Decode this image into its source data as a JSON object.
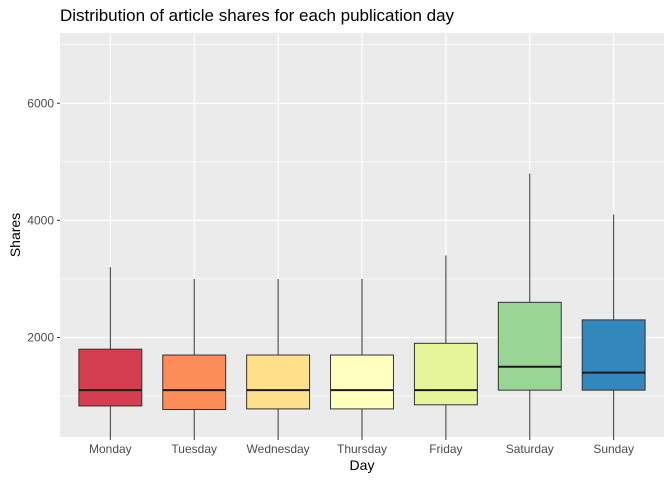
{
  "chart_data": {
    "type": "box",
    "title": "Distribution of article shares for each publication day",
    "xlabel": "Day",
    "ylabel": "Shares",
    "ylim": [
      300,
      7200
    ],
    "yticks": [
      2000,
      4000,
      6000
    ],
    "yticks_minor": [
      1000,
      3000,
      5000,
      7000
    ],
    "grid": true,
    "legend": "none",
    "categories": [
      "Monday",
      "Tuesday",
      "Wednesday",
      "Thursday",
      "Friday",
      "Saturday",
      "Sunday"
    ],
    "boxes": [
      {
        "category": "Monday",
        "lower_whisker": 300,
        "q1": 830,
        "median": 1100,
        "q3": 1800,
        "upper_whisker": 3200,
        "color": "#d53e4f"
      },
      {
        "category": "Tuesday",
        "lower_whisker": 300,
        "q1": 770,
        "median": 1100,
        "q3": 1700,
        "upper_whisker": 3000,
        "color": "#fc8d59"
      },
      {
        "category": "Wednesday",
        "lower_whisker": 300,
        "q1": 780,
        "median": 1100,
        "q3": 1700,
        "upper_whisker": 3000,
        "color": "#fee08b"
      },
      {
        "category": "Thursday",
        "lower_whisker": 300,
        "q1": 780,
        "median": 1100,
        "q3": 1700,
        "upper_whisker": 3000,
        "color": "#ffffbf"
      },
      {
        "category": "Friday",
        "lower_whisker": 300,
        "q1": 850,
        "median": 1100,
        "q3": 1900,
        "upper_whisker": 3400,
        "color": "#e6f598"
      },
      {
        "category": "Saturday",
        "lower_whisker": 300,
        "q1": 1100,
        "median": 1500,
        "q3": 2600,
        "upper_whisker": 4800,
        "color": "#99d594"
      },
      {
        "category": "Sunday",
        "lower_whisker": 300,
        "q1": 1100,
        "median": 1400,
        "q3": 2300,
        "upper_whisker": 4100,
        "color": "#3288bd"
      }
    ]
  }
}
